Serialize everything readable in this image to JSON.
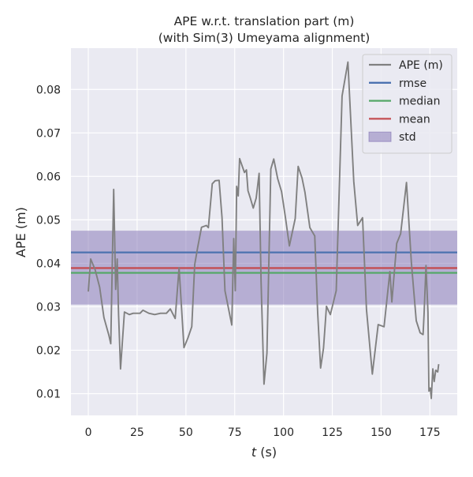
{
  "chart_data": {
    "type": "line",
    "title": [
      "APE w.r.t. translation part (m)",
      "(with Sim(3) Umeyama alignment)"
    ],
    "xlabel": "t (s)",
    "xlabel_var": "t",
    "xlabel_unit": " (s)",
    "ylabel": "APE (m)",
    "xlim": [
      -8.9,
      189
    ],
    "ylim": [
      0.005,
      0.0895
    ],
    "xticks": [
      0,
      25,
      50,
      75,
      100,
      125,
      150,
      175
    ],
    "yticks": [
      0.01,
      0.02,
      0.03,
      0.04,
      0.05,
      0.06,
      0.07,
      0.08
    ],
    "grid": true,
    "legend_position": "top-right",
    "colors": {
      "background": "#EAEAF2",
      "grid": "#FFFFFF",
      "ape": "#808080",
      "rmse": "#4C72B0",
      "median": "#55A868",
      "mean": "#C44E52",
      "std_fill": "#8172B3"
    },
    "legend": [
      {
        "label": "APE (m)",
        "kind": "line",
        "color": "#808080"
      },
      {
        "label": "rmse",
        "kind": "line",
        "color": "#4C72B0"
      },
      {
        "label": "median",
        "kind": "line",
        "color": "#55A868"
      },
      {
        "label": "mean",
        "kind": "line",
        "color": "#C44E52"
      },
      {
        "label": "std",
        "kind": "patch",
        "color": "#8172B3"
      }
    ],
    "stats": {
      "rmse": 0.0425,
      "median": 0.0378,
      "mean": 0.0389,
      "std_band": [
        0.0305,
        0.0475
      ]
    },
    "series": [
      {
        "name": "APE (m)",
        "x": [
          0,
          1.2,
          3.5,
          5.8,
          8,
          10.5,
          11.5,
          13,
          14,
          14.8,
          15.5,
          16.5,
          18.5,
          21,
          23,
          25,
          26.5,
          28,
          31,
          34,
          37,
          40,
          42,
          44.5,
          46.5,
          49,
          51,
          53,
          54.5,
          56,
          58,
          60.5,
          61.5,
          63.5,
          65,
          67,
          68.5,
          70,
          73.5,
          74.5,
          75.3,
          76,
          76.8,
          77.5,
          78.5,
          80,
          81,
          81.8,
          83,
          84.5,
          86,
          87.5,
          88.5,
          90,
          91.5,
          93.5,
          95,
          97,
          99,
          101,
          103,
          106,
          107.5,
          109.5,
          111,
          113.5,
          116,
          117.5,
          119,
          120.5,
          122,
          124,
          127,
          130,
          133,
          136,
          138,
          140.5,
          142.5,
          145.5,
          148.5,
          151.5,
          154.5,
          155.5,
          158,
          160,
          163,
          165.5,
          168,
          170,
          171.5,
          172,
          173,
          174,
          174.5,
          175.2,
          175.7,
          176.5,
          177.2,
          178,
          179,
          179.5
        ],
        "values": [
          0.0335,
          0.041,
          0.0385,
          0.0345,
          0.0275,
          0.0235,
          0.0215,
          0.057,
          0.034,
          0.041,
          0.0282,
          0.0157,
          0.0288,
          0.0282,
          0.0285,
          0.0285,
          0.0285,
          0.0292,
          0.0285,
          0.0282,
          0.0285,
          0.0285,
          0.0295,
          0.0273,
          0.039,
          0.0206,
          0.0228,
          0.0254,
          0.0397,
          0.0436,
          0.0483,
          0.0487,
          0.0482,
          0.0583,
          0.059,
          0.0591,
          0.0505,
          0.0337,
          0.0258,
          0.0457,
          0.0337,
          0.0577,
          0.0555,
          0.0641,
          0.0628,
          0.0609,
          0.0615,
          0.0567,
          0.055,
          0.0527,
          0.055,
          0.0607,
          0.0359,
          0.0122,
          0.0193,
          0.0617,
          0.064,
          0.0595,
          0.0565,
          0.0505,
          0.044,
          0.0503,
          0.0623,
          0.0596,
          0.0563,
          0.0482,
          0.0463,
          0.0286,
          0.0159,
          0.0205,
          0.0301,
          0.0282,
          0.0337,
          0.0785,
          0.0863,
          0.0588,
          0.0487,
          0.0505,
          0.0294,
          0.0145,
          0.0259,
          0.0254,
          0.0381,
          0.0311,
          0.0446,
          0.0468,
          0.0586,
          0.0402,
          0.0268,
          0.024,
          0.0236,
          0.0282,
          0.0395,
          0.0287,
          0.0106,
          0.0113,
          0.0089,
          0.0157,
          0.0128,
          0.0154,
          0.015,
          0.0168
        ]
      }
    ]
  }
}
